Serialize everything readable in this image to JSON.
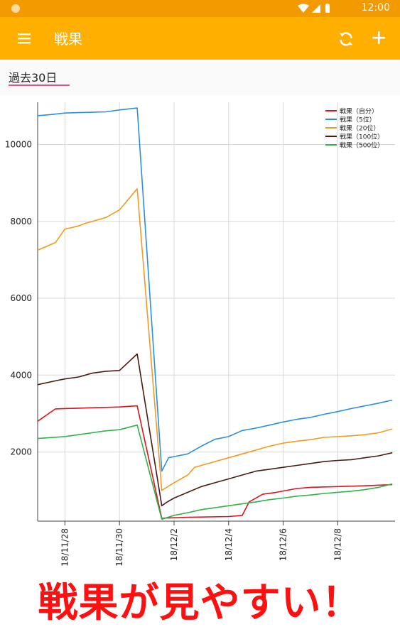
{
  "status_bar": {
    "time": "12:00"
  },
  "app_bar": {
    "title": "戦果",
    "menu_icon": "menu-icon",
    "refresh_icon": "refresh-icon",
    "add_icon": "add-icon"
  },
  "period": {
    "selected": "過去30日"
  },
  "colors": {
    "accent": "#ffaf00",
    "status": "#f29a00",
    "underline": "#e9518b"
  },
  "chart_data": {
    "type": "line",
    "y_ticks": [
      "2000",
      "4000",
      "6000",
      "8000",
      "10000"
    ],
    "ylim": [
      200,
      11100
    ],
    "xlim": [
      0,
      26.2
    ],
    "x_ticks": [
      {
        "label": "18/11/28",
        "x": 2
      },
      {
        "label": "18/11/30",
        "x": 6
      },
      {
        "label": "18/12/2",
        "x": 10
      },
      {
        "label": "18/12/4",
        "x": 14
      },
      {
        "label": "18/12/6",
        "x": 18
      },
      {
        "label": "18/12/8",
        "x": 22
      }
    ],
    "series": [
      {
        "name": "戦果（自分）",
        "color": "#e0121c",
        "x": [
          0,
          1.3,
          2,
          3,
          4,
          5,
          6,
          7.3,
          9.1,
          9.3,
          11,
          14,
          15,
          15.5,
          16.5,
          17.5,
          19,
          20,
          22,
          24,
          26
        ],
        "y": [
          2800,
          3120,
          3130,
          3140,
          3150,
          3160,
          3170,
          3200,
          270,
          280,
          300,
          320,
          350,
          700,
          900,
          950,
          1050,
          1080,
          1100,
          1120,
          1150
        ]
      },
      {
        "name": "戦果（5位）",
        "color": "#2a8fe0",
        "x": [
          0,
          1,
          2,
          3,
          4,
          5,
          6,
          7.3,
          9.1,
          9.6,
          10,
          11,
          12,
          13,
          14,
          15,
          16,
          17,
          18,
          19,
          20,
          21,
          22,
          23,
          24,
          25,
          26
        ],
        "y": [
          10750,
          10780,
          10820,
          10830,
          10840,
          10850,
          10900,
          10950,
          1500,
          1850,
          1880,
          1950,
          2150,
          2330,
          2400,
          2560,
          2620,
          2700,
          2780,
          2850,
          2900,
          2980,
          3050,
          3130,
          3200,
          3270,
          3350
        ]
      },
      {
        "name": "戦果（20位）",
        "color": "#f49a20",
        "x": [
          0,
          1.3,
          2,
          3,
          3.5,
          4,
          5,
          6,
          7.3,
          9.1,
          10,
          11,
          11.5,
          12,
          13,
          14,
          15,
          16,
          17,
          18,
          19,
          20,
          21,
          22,
          23,
          24,
          25,
          26
        ],
        "y": [
          7250,
          7450,
          7800,
          7880,
          7950,
          8000,
          8100,
          8300,
          8850,
          1000,
          1200,
          1400,
          1600,
          1650,
          1750,
          1850,
          1950,
          2050,
          2150,
          2230,
          2280,
          2320,
          2380,
          2400,
          2420,
          2450,
          2500,
          2600
        ]
      },
      {
        "name": "戦果（100位）",
        "color": "#4a1a10",
        "x": [
          0,
          1.3,
          2,
          3,
          3.5,
          4,
          5,
          6,
          7.3,
          9.1,
          9.5,
          10,
          11,
          12,
          13,
          14,
          15,
          16,
          17,
          18,
          19,
          20,
          21,
          22,
          23,
          24,
          25,
          26
        ],
        "y": [
          3750,
          3850,
          3900,
          3950,
          4000,
          4050,
          4100,
          4120,
          4550,
          600,
          700,
          800,
          950,
          1100,
          1200,
          1300,
          1400,
          1500,
          1550,
          1600,
          1650,
          1700,
          1750,
          1780,
          1800,
          1850,
          1900,
          1980
        ]
      },
      {
        "name": "戦果（500位）",
        "color": "#2fb34a",
        "x": [
          0,
          2,
          3,
          4,
          5,
          6,
          7.3,
          9.1,
          10,
          11,
          12,
          13,
          14,
          15,
          16,
          17,
          18,
          19,
          20,
          21,
          22,
          23,
          24,
          25,
          26
        ],
        "y": [
          2350,
          2400,
          2450,
          2500,
          2550,
          2580,
          2700,
          250,
          350,
          420,
          500,
          550,
          600,
          650,
          700,
          760,
          800,
          850,
          880,
          920,
          950,
          980,
          1020,
          1080,
          1170
        ]
      }
    ]
  },
  "caption": {
    "text": "戦果が見やすい！"
  }
}
